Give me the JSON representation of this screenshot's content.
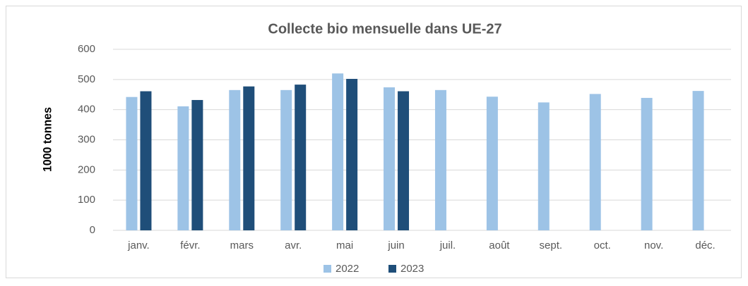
{
  "chart_data": {
    "type": "bar",
    "title": "Collecte bio mensuelle dans UE-27",
    "y_label": "1000 tonnes",
    "categories": [
      "janv.",
      "févr.",
      "mars",
      "avr.",
      "mai",
      "juin",
      "juil.",
      "août",
      "sept.",
      "oct.",
      "nov.",
      "déc."
    ],
    "series": [
      {
        "name": "2022",
        "color": "#9dc3e6",
        "values": [
          442,
          411,
          465,
          465,
          520,
          474,
          465,
          443,
          424,
          452,
          439,
          462
        ]
      },
      {
        "name": "2023",
        "color": "#1f4e79",
        "values": [
          461,
          432,
          477,
          483,
          502,
          461,
          null,
          null,
          null,
          null,
          null,
          null
        ]
      }
    ],
    "ylim": [
      0,
      600
    ],
    "yticks": [
      0,
      100,
      200,
      300,
      400,
      500,
      600
    ],
    "grid": true,
    "legend": "bottom"
  }
}
